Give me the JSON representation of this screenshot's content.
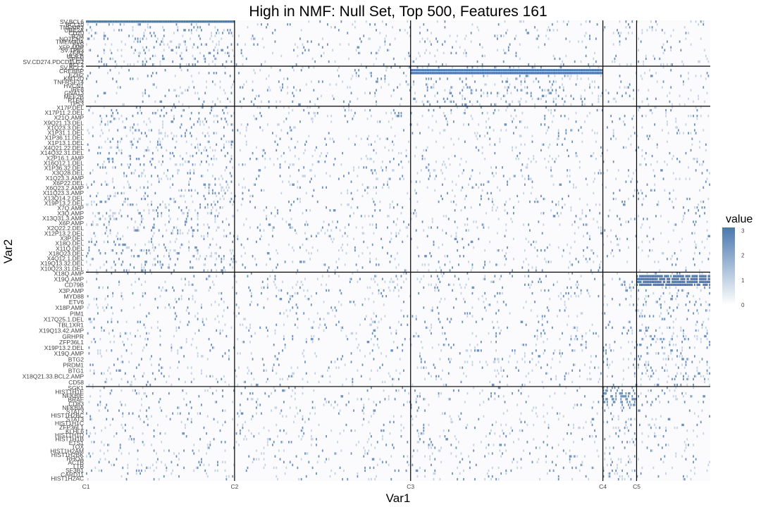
{
  "chart_data": {
    "type": "heatmap",
    "title": "High in NMF: Null Set, Top 500, Features 161",
    "xlabel": "Var1",
    "ylabel": "Var2",
    "legend": {
      "title": "value",
      "ticks": [
        "0",
        "1",
        "2",
        "3"
      ],
      "position": "right",
      "low_color": "#ffffff",
      "high_color": "#4a78b0"
    },
    "value_range": [
      0,
      3
    ],
    "n_samples": 500,
    "n_features": 161,
    "x_ticks": [
      {
        "label": "C1",
        "index": 0
      },
      {
        "label": "C2",
        "index": 119
      },
      {
        "label": "C3",
        "index": 260
      },
      {
        "label": "C4",
        "index": 414
      },
      {
        "label": "C5",
        "index": 441
      }
    ],
    "row_groups": [
      {
        "start": 0,
        "end": 16,
        "high_in": 0,
        "labels": [
          "SV.BCL6",
          "BCL10",
          "TNFAIP3",
          "UBE2A",
          "CD70",
          "B2M",
          "NOTCH2",
          "TMEM30A",
          "FAS",
          "X5P.AMP",
          "SV.TP63",
          "ZEB2",
          "HLA.B",
          "SPEN",
          "SV.CD274.PDCD1LG2",
          "BCL2"
        ]
      },
      {
        "start": 16,
        "end": 30,
        "high_in": 2,
        "labels": [
          "SV.BCL2",
          "CREBBP",
          "EZH2",
          "KMT2D",
          "TNFRSF14",
          "HVCN1",
          "IRF8",
          "GNA13",
          "MEF2B",
          "PTEN",
          "TP53"
        ]
      },
      {
        "start": 30,
        "end": 88,
        "high_in": 0,
        "labels": [
          "X17P.DEL",
          "X17P11.2.DEL",
          "X21Q.AMP",
          "X9Q21.13.DEL",
          "X1Q23.3.DEL",
          "X1P31.1.DEL",
          "X1P36.11.DEL",
          "X1P13.1.DEL",
          "X4Q21.22.DEL",
          "X14Q32.31.DEL",
          "X2P16.1.AMP",
          "X16Q12.1.DEL",
          "X1P36.32.DEL",
          "X3Q28.DEL",
          "X1Q23.3.AMP",
          "X6P22.DEL",
          "X6Q23.2.AMP",
          "X11Q23.3.AMP",
          "X13Q14.2.DEL",
          "X19P13.2.DEL",
          "X7Q.AMP",
          "X3Q.AMP",
          "X13Q31.3.AMP",
          "X6P.AMP",
          "X2Q22.2.DEL",
          "X12P13.2.DEL",
          "X3P.DEL",
          "X18Q.DEL",
          "X11Q.DEL",
          "X18Q23.DEL",
          "X4Q12.1.DEL",
          "X19Q13.32.DEL",
          "X10Q23.31.DEL"
        ]
      },
      {
        "start": 88,
        "end": 128,
        "high_in": 4,
        "labels": [
          "X18Q.AMP",
          "X19Q.AMP",
          "CD79B",
          "X3P.AMP",
          "MYD88",
          "ETV6",
          "X18P.AMP",
          "PIM1",
          "X17Q25.1.DEL",
          "TBL1XR1",
          "X19Q13.42.AMP",
          "GRHPR",
          "ZFP36L1",
          "X19P13.2.DEL",
          "X19Q.AMP",
          "BTG2",
          "PRDM1",
          "BTG1",
          "X18Q21.33.BCL2.AMP",
          "CD58"
        ]
      },
      {
        "start": 128,
        "end": 161,
        "high_in": 3,
        "labels": [
          "SGK1",
          "HIST1H1E",
          "NFKBIE",
          "BRAF",
          "CD83",
          "NFKBIA",
          "STAT3",
          "HIST1H2BC",
          "STAT3",
          "HIST1H1C",
          "ZFP36L1",
          "KLHL6",
          "HIST1H1D",
          "HIST1H1B",
          "ETS1",
          "TOX",
          "HIST1H2AM",
          "HIST1H2BK",
          "RHOA",
          "ACTB",
          "LTB",
          "SF3B1",
          "CARD11",
          "HIST1H2AC"
        ]
      }
    ]
  }
}
